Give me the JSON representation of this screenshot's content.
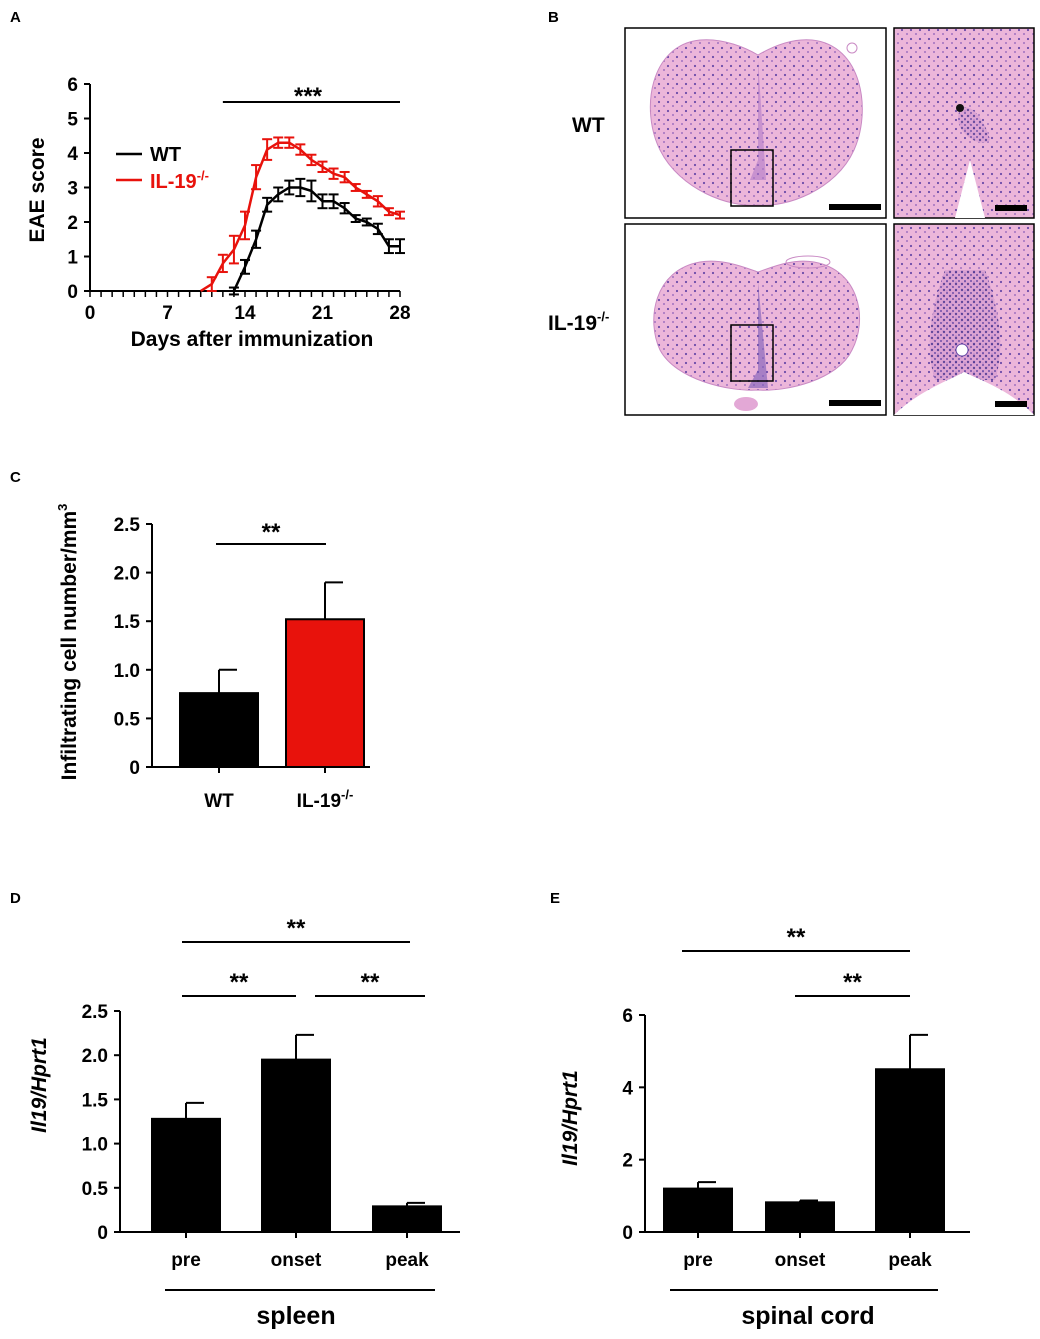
{
  "colors": {
    "wt": "#000000",
    "ko": "#e8120c",
    "bar": "#000000",
    "tissue": "#d98ec4",
    "tissue_dark": "#a06ab8"
  },
  "chart_data": [
    {
      "panel": "A",
      "type": "line",
      "xlabel": "Days after immunization",
      "ylabel": "EAE score",
      "xlim": [
        0,
        28
      ],
      "ylim": [
        0,
        6
      ],
      "xticks": [
        "0",
        "7",
        "14",
        "21",
        "28"
      ],
      "yticks": [
        "0",
        "1",
        "2",
        "3",
        "4",
        "5",
        "6"
      ],
      "significance": "***",
      "sig_range": [
        12,
        28
      ],
      "series": [
        {
          "name": "WT",
          "x": [
            0,
            1,
            2,
            3,
            4,
            5,
            6,
            7,
            8,
            9,
            10,
            11,
            12,
            13,
            14,
            15,
            16,
            17,
            18,
            19,
            20,
            21,
            22,
            23,
            24,
            25,
            26,
            27,
            28
          ],
          "y": [
            0,
            0,
            0,
            0,
            0,
            0,
            0,
            0,
            0,
            0,
            0,
            0,
            0,
            0,
            0.7,
            1.5,
            2.5,
            2.8,
            3.0,
            3.0,
            2.9,
            2.6,
            2.6,
            2.4,
            2.1,
            2.0,
            1.8,
            1.3,
            1.3
          ],
          "err": [
            0,
            0,
            0,
            0,
            0,
            0,
            0,
            0,
            0,
            0,
            0,
            0,
            0,
            0.1,
            0.2,
            0.25,
            0.2,
            0.2,
            0.2,
            0.25,
            0.3,
            0.2,
            0.2,
            0.15,
            0.1,
            0.1,
            0.15,
            0.2,
            0.2
          ]
        },
        {
          "name": "IL-19-/-",
          "x": [
            0,
            1,
            2,
            3,
            4,
            5,
            6,
            7,
            8,
            9,
            10,
            11,
            12,
            13,
            14,
            15,
            16,
            17,
            18,
            19,
            20,
            21,
            22,
            23,
            24,
            25,
            26,
            27,
            28
          ],
          "y": [
            0,
            0,
            0,
            0,
            0,
            0,
            0,
            0,
            0,
            0,
            0,
            0.2,
            0.8,
            1.2,
            1.9,
            3.3,
            4.1,
            4.3,
            4.3,
            4.1,
            3.8,
            3.6,
            3.4,
            3.3,
            3.0,
            2.8,
            2.6,
            2.3,
            2.2
          ],
          "err": [
            0,
            0,
            0,
            0,
            0,
            0,
            0,
            0,
            0,
            0,
            0,
            0.2,
            0.25,
            0.4,
            0.4,
            0.35,
            0.3,
            0.15,
            0.15,
            0.15,
            0.15,
            0.15,
            0.15,
            0.15,
            0.1,
            0.1,
            0.15,
            0.1,
            0.1
          ]
        }
      ]
    },
    {
      "panel": "C",
      "type": "bar",
      "categories": [
        "WT",
        "IL-19"
      ],
      "values": [
        0.76,
        1.52
      ],
      "err": [
        0.24,
        0.38
      ],
      "ylabel": "Infiltrating cell number/mm",
      "ylim": [
        0,
        2.5
      ],
      "yticks": [
        "0",
        "0.5",
        "1.0",
        "1.5",
        "2.0",
        "2.5"
      ],
      "significance": "**"
    },
    {
      "panel": "D",
      "type": "bar",
      "categories": [
        "pre",
        "onset",
        "peak"
      ],
      "values": [
        1.28,
        1.95,
        0.29
      ],
      "err": [
        0.18,
        0.28,
        0.04
      ],
      "ylabel": "Il19/Hprt1",
      "xgroup": "spleen",
      "ylim": [
        0,
        2.5
      ],
      "yticks": [
        "0",
        "0.5",
        "1.0",
        "1.5",
        "2.0",
        "2.5"
      ],
      "significance": [
        "**",
        "**",
        "**"
      ]
    },
    {
      "panel": "E",
      "type": "bar",
      "categories": [
        "pre",
        "onset",
        "peak"
      ],
      "values": [
        1.2,
        0.82,
        4.5
      ],
      "err": [
        0.18,
        0.05,
        0.95
      ],
      "ylabel": "Il19/Hprt1",
      "xgroup": "spinal cord",
      "ylim": [
        0,
        6
      ],
      "yticks": [
        "0",
        "2",
        "4",
        "6"
      ],
      "significance": [
        "**",
        "**"
      ]
    }
  ],
  "panels": {
    "a": {
      "letter": "A",
      "legend_wt": "WT",
      "legend_ko": "IL-19",
      "legend_ko_sup": "-/-"
    },
    "b": {
      "letter": "B",
      "row1": "WT",
      "row2": "IL-19",
      "row2_sup": "-/-"
    },
    "c": {
      "letter": "C",
      "ylabel_sup": "3",
      "cat2_sup": "-/-"
    },
    "d": {
      "letter": "D"
    },
    "e": {
      "letter": "E"
    }
  }
}
